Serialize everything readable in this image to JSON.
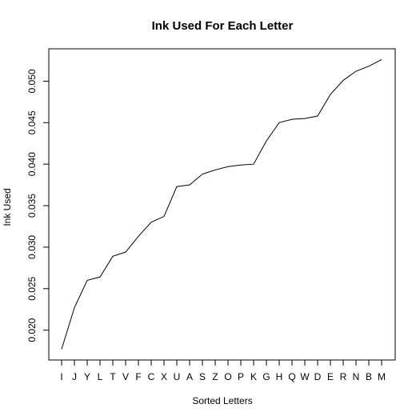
{
  "chart_data": {
    "type": "line",
    "title": "Ink Used For Each Letter",
    "xlabel": "Sorted Letters",
    "ylabel": "Ink Used",
    "categories": [
      "I",
      "J",
      "Y",
      "L",
      "T",
      "V",
      "F",
      "C",
      "X",
      "U",
      "A",
      "S",
      "Z",
      "O",
      "P",
      "K",
      "G",
      "H",
      "Q",
      "W",
      "D",
      "E",
      "R",
      "N",
      "B",
      "M"
    ],
    "values": [
      0.0177,
      0.0227,
      0.026,
      0.0264,
      0.0289,
      0.0294,
      0.0313,
      0.033,
      0.0337,
      0.0373,
      0.0375,
      0.0388,
      0.0393,
      0.0397,
      0.0399,
      0.04,
      0.0428,
      0.045,
      0.0454,
      0.0455,
      0.0458,
      0.0484,
      0.0501,
      0.0512,
      0.0518,
      0.0526
    ],
    "yticks": [
      "0.020",
      "0.025",
      "0.030",
      "0.035",
      "0.040",
      "0.045",
      "0.050"
    ],
    "ylim": [
      0.0164,
      0.0539
    ],
    "grid": false,
    "legend": "none",
    "line_color": "#000000"
  }
}
